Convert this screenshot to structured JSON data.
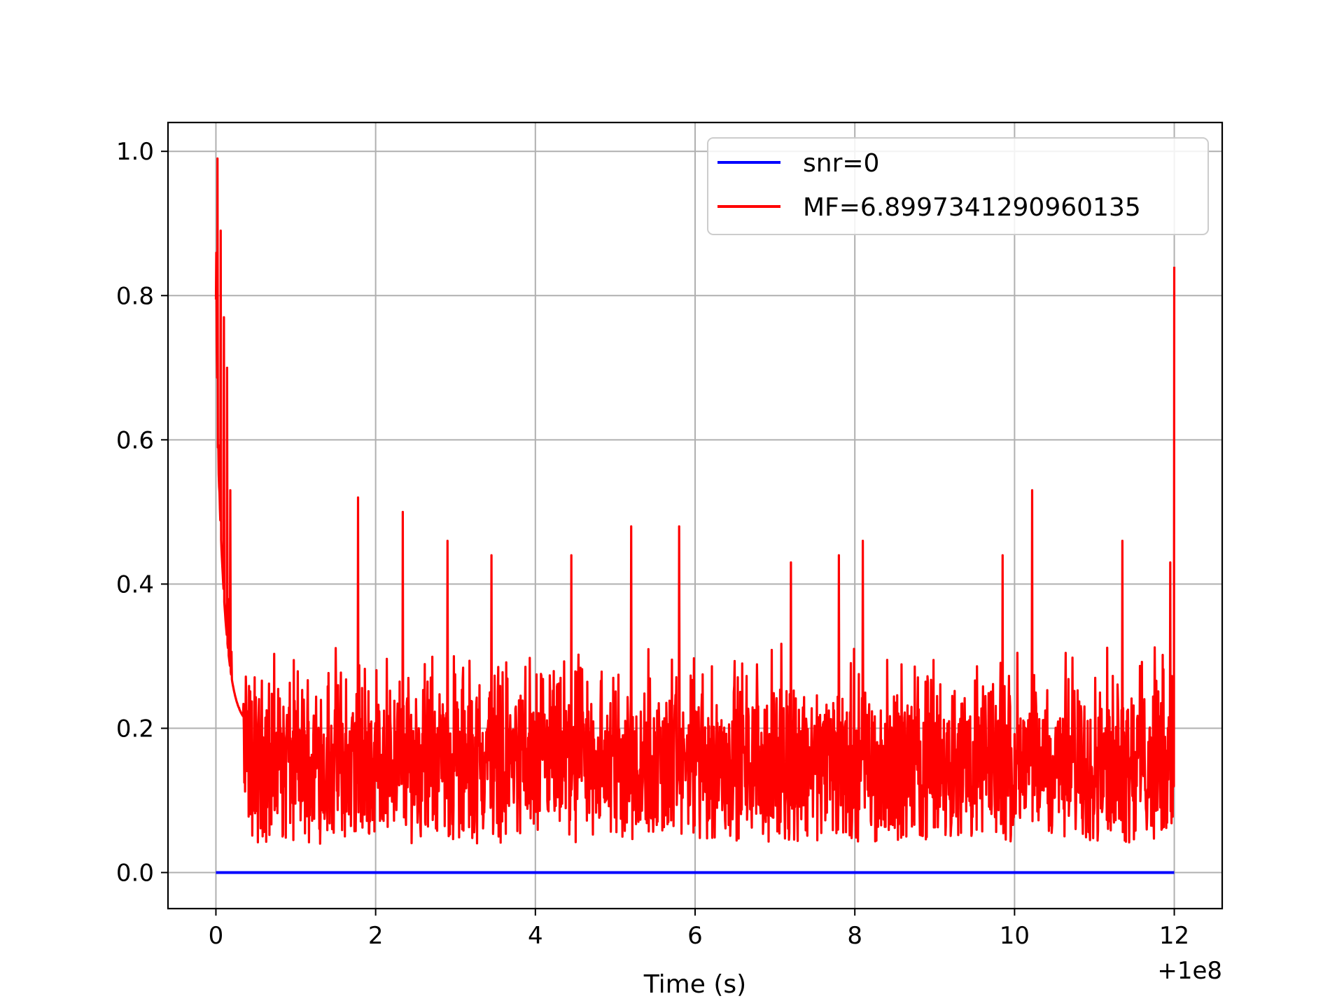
{
  "chart_data": {
    "type": "line",
    "title": "",
    "xlabel": "Time (s)",
    "ylabel": "",
    "x_offset_text": "+1e8",
    "xlim": [
      -0.6,
      12.6
    ],
    "ylim": [
      -0.05,
      1.04
    ],
    "x_ticks": [
      0,
      2,
      4,
      6,
      8,
      10,
      12
    ],
    "x_tick_labels": [
      "0",
      "2",
      "4",
      "6",
      "8",
      "10",
      "12"
    ],
    "y_ticks": [
      0.0,
      0.2,
      0.4,
      0.6,
      0.8,
      1.0
    ],
    "y_tick_labels": [
      "0.0",
      "0.2",
      "0.4",
      "0.6",
      "0.8",
      "1.0"
    ],
    "grid": true,
    "legend_position": "top-right",
    "series": [
      {
        "name": "snr=0",
        "color": "#0000ff",
        "x": [
          0,
          12
        ],
        "y": [
          0,
          0
        ]
      },
      {
        "name": "MF=6.8997341290960135",
        "color": "#ff0000",
        "x_range": [
          0,
          12
        ],
        "noise_floor": 0.0,
        "typical_range": [
          0.02,
          0.35
        ],
        "peaks": [
          {
            "x": 0.02,
            "y": 0.99
          },
          {
            "x": 0.06,
            "y": 0.89
          },
          {
            "x": 0.1,
            "y": 0.77
          },
          {
            "x": 0.14,
            "y": 0.7
          },
          {
            "x": 0.18,
            "y": 0.53
          },
          {
            "x": 1.78,
            "y": 0.52
          },
          {
            "x": 2.34,
            "y": 0.5
          },
          {
            "x": 2.9,
            "y": 0.46
          },
          {
            "x": 3.45,
            "y": 0.44
          },
          {
            "x": 4.45,
            "y": 0.44
          },
          {
            "x": 5.2,
            "y": 0.48
          },
          {
            "x": 5.8,
            "y": 0.48
          },
          {
            "x": 7.2,
            "y": 0.43
          },
          {
            "x": 7.8,
            "y": 0.44
          },
          {
            "x": 8.1,
            "y": 0.46
          },
          {
            "x": 9.85,
            "y": 0.44
          },
          {
            "x": 10.22,
            "y": 0.53
          },
          {
            "x": 11.35,
            "y": 0.46
          },
          {
            "x": 11.95,
            "y": 0.43
          },
          {
            "x": 12.0,
            "y": 0.84
          }
        ]
      }
    ]
  }
}
